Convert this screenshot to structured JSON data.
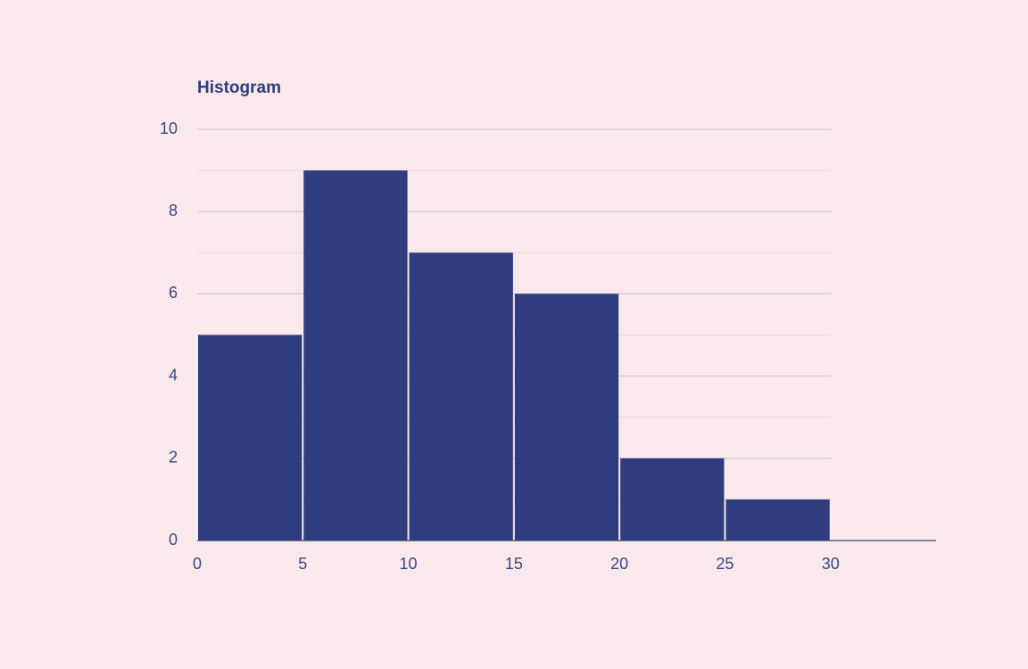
{
  "chart_data": {
    "type": "histogram",
    "title": "Histogram",
    "bins": [
      0,
      5,
      10,
      15,
      20,
      25,
      30
    ],
    "values": [
      5,
      9,
      7,
      6,
      2,
      1
    ],
    "color": "#2f3c7e",
    "xlim": [
      0,
      35
    ],
    "xticks": [
      0,
      5,
      10,
      15,
      20,
      25,
      30
    ],
    "ylim": [
      0,
      10
    ],
    "yticks": [
      0,
      2,
      4,
      6,
      8,
      10
    ],
    "yminorticks": [
      1,
      3,
      5,
      7,
      9
    ],
    "grid": true
  }
}
